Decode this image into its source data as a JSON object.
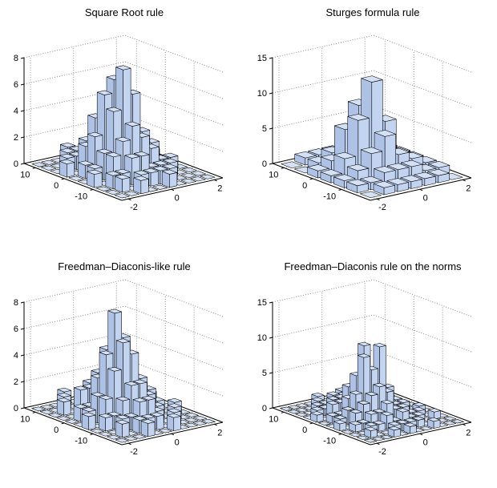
{
  "figure": {
    "background": "#ffffff"
  },
  "colors": {
    "bar_top": "#d4e1f5",
    "bar_front": "#c2d4ef",
    "bar_side": "#adc2e4",
    "edge": "#000000",
    "grid_dotted": "#8f8f8f",
    "text": "#000000"
  },
  "chart_data": [
    {
      "type": "bar",
      "subtype": "3d-histogram-bar3",
      "title": "Square Root rule",
      "xticks": [
        -2,
        0,
        2
      ],
      "xlim": [
        -2.3,
        2.4
      ],
      "yticks": [
        -10,
        0,
        10
      ],
      "ylim": [
        -20,
        14
      ],
      "zticks": [
        0,
        2,
        4,
        6,
        8
      ],
      "zlim": [
        0,
        8
      ],
      "grid": true,
      "legend_position": "none",
      "values": [
        [
          0,
          0,
          1,
          0,
          0,
          1,
          0,
          0,
          0,
          0
        ],
        [
          0,
          1,
          0,
          1,
          1,
          1,
          1,
          0,
          0,
          0
        ],
        [
          0,
          1,
          1,
          2,
          2,
          1,
          1,
          1,
          0,
          0
        ],
        [
          1,
          0,
          2,
          3,
          4,
          3,
          2,
          1,
          1,
          0
        ],
        [
          0,
          1,
          2,
          5,
          8,
          6,
          3,
          2,
          0,
          0
        ],
        [
          0,
          1,
          3,
          6,
          7,
          5,
          2,
          1,
          1,
          0
        ],
        [
          1,
          0,
          2,
          4,
          5,
          3,
          2,
          1,
          0,
          0
        ],
        [
          0,
          1,
          1,
          2,
          3,
          2,
          1,
          0,
          1,
          0
        ],
        [
          0,
          0,
          1,
          1,
          1,
          1,
          0,
          1,
          0,
          0
        ],
        [
          0,
          0,
          0,
          1,
          0,
          1,
          0,
          0,
          0,
          0
        ]
      ]
    },
    {
      "type": "bar",
      "subtype": "3d-histogram-bar3",
      "title": "Sturges formula rule",
      "xticks": [
        -2,
        0,
        2
      ],
      "xlim": [
        -2.3,
        2.4
      ],
      "yticks": [
        -10,
        0,
        10
      ],
      "ylim": [
        -20,
        14
      ],
      "zticks": [
        0,
        5,
        10,
        15
      ],
      "zlim": [
        0,
        15
      ],
      "grid": true,
      "legend_position": "none",
      "values": [
        [
          0,
          1,
          1,
          1,
          1,
          1,
          0
        ],
        [
          1,
          1,
          2,
          2,
          2,
          1,
          1
        ],
        [
          1,
          2,
          4,
          6,
          3,
          2,
          1
        ],
        [
          1,
          3,
          8,
          13,
          7,
          2,
          1
        ],
        [
          1,
          2,
          6,
          9,
          5,
          2,
          1
        ],
        [
          0,
          1,
          2,
          3,
          2,
          1,
          1
        ],
        [
          0,
          1,
          1,
          1,
          1,
          0,
          0
        ]
      ]
    },
    {
      "type": "bar",
      "subtype": "3d-histogram-bar3",
      "title": "Freedman–Diaconis-like rule",
      "xticks": [
        -2,
        0,
        2
      ],
      "xlim": [
        -2.3,
        2.4
      ],
      "yticks": [
        -10,
        0,
        10
      ],
      "ylim": [
        -20,
        14
      ],
      "zticks": [
        0,
        2,
        4,
        6,
        8
      ],
      "zlim": [
        0,
        8
      ],
      "grid": true,
      "legend_position": "none",
      "values": [
        [
          0,
          0,
          0,
          1,
          0,
          0,
          1,
          0,
          0,
          0,
          0
        ],
        [
          0,
          1,
          0,
          1,
          1,
          1,
          0,
          1,
          0,
          0,
          0
        ],
        [
          0,
          0,
          1,
          1,
          2,
          2,
          1,
          0,
          1,
          0,
          0
        ],
        [
          0,
          1,
          1,
          2,
          3,
          3,
          2,
          1,
          0,
          1,
          0
        ],
        [
          1,
          0,
          2,
          4,
          6,
          5,
          3,
          2,
          1,
          0,
          0
        ],
        [
          0,
          1,
          2,
          5,
          8,
          6,
          3,
          1,
          1,
          0,
          0
        ],
        [
          0,
          1,
          1,
          3,
          5,
          4,
          2,
          2,
          0,
          1,
          0
        ],
        [
          0,
          0,
          2,
          2,
          3,
          2,
          2,
          1,
          1,
          0,
          0
        ],
        [
          0,
          1,
          0,
          1,
          2,
          1,
          1,
          0,
          0,
          0,
          0
        ],
        [
          0,
          0,
          1,
          0,
          1,
          1,
          0,
          1,
          0,
          0,
          0
        ],
        [
          0,
          0,
          0,
          1,
          0,
          0,
          1,
          0,
          0,
          0,
          0
        ]
      ]
    },
    {
      "type": "bar",
      "subtype": "3d-histogram-bar3",
      "title": "Freedman–Diaconis rule on the norms",
      "xticks": [
        -2,
        0,
        2
      ],
      "xlim": [
        -2.3,
        2.4
      ],
      "yticks": [
        -10,
        0,
        10
      ],
      "ylim": [
        -20,
        14
      ],
      "zticks": [
        0,
        5,
        10,
        15
      ],
      "zlim": [
        0,
        15
      ],
      "grid": true,
      "legend_position": "none",
      "values": [
        [
          0,
          0,
          0,
          1,
          0,
          1,
          0,
          0,
          1,
          0,
          0,
          0
        ],
        [
          0,
          1,
          0,
          0,
          1,
          1,
          1,
          1,
          0,
          0,
          0,
          0
        ],
        [
          0,
          0,
          1,
          1,
          2,
          1,
          2,
          1,
          1,
          0,
          1,
          0
        ],
        [
          0,
          1,
          1,
          2,
          2,
          3,
          2,
          2,
          1,
          1,
          0,
          0
        ],
        [
          1,
          0,
          2,
          3,
          4,
          5,
          4,
          2,
          2,
          0,
          1,
          0
        ],
        [
          0,
          1,
          2,
          4,
          9,
          7,
          10,
          4,
          2,
          1,
          0,
          0
        ],
        [
          0,
          1,
          1,
          3,
          6,
          10,
          5,
          3,
          1,
          1,
          0,
          0
        ],
        [
          1,
          0,
          2,
          2,
          4,
          4,
          3,
          2,
          2,
          0,
          0,
          0
        ],
        [
          0,
          1,
          1,
          2,
          2,
          3,
          2,
          1,
          1,
          1,
          0,
          0
        ],
        [
          0,
          0,
          1,
          1,
          2,
          1,
          1,
          1,
          0,
          0,
          1,
          0
        ],
        [
          0,
          0,
          0,
          1,
          0,
          1,
          1,
          0,
          1,
          0,
          0,
          0
        ],
        [
          0,
          0,
          0,
          0,
          1,
          0,
          0,
          1,
          0,
          0,
          0,
          0
        ]
      ]
    }
  ]
}
